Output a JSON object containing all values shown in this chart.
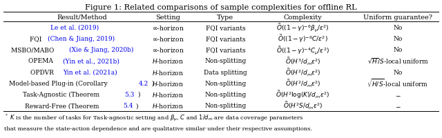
{
  "title": "Figure 1: Related comparisons of sample complexities for offline RL",
  "col_headers": [
    "Result/Method",
    "Setting",
    "Type",
    "Complexity",
    "Uniform guarantee?"
  ],
  "blue_color": "#0000EE",
  "text_color": "#000000",
  "bg_color": "#FFFFFF",
  "rows": [
    {
      "method_parts": [
        [
          "Le et al. (2019)",
          "blue"
        ]
      ],
      "setting": "$\\infty$-horizon",
      "type_": "FQI variants",
      "complexity": "$\\tilde{O}((1-\\gamma)^{-6}\\beta_{\\mu}/\\epsilon^2)$",
      "guarantee": "No"
    },
    {
      "method_parts": [
        [
          "FQI ",
          "black"
        ],
        [
          "(Chen & Jiang, 2019)",
          "blue"
        ]
      ],
      "setting": "$\\infty$-horizon",
      "type_": "FQI variants",
      "complexity": "$\\tilde{O}((1-\\gamma)^{-6}C/\\epsilon^2)$",
      "guarantee": "No"
    },
    {
      "method_parts": [
        [
          "MSBO/MABO ",
          "black"
        ],
        [
          "(Xie & Jiang, 2020b)",
          "blue"
        ]
      ],
      "setting": "$\\infty$-horizon",
      "type_": "FQI variants",
      "complexity": "$\\tilde{O}((1-\\gamma)^{-4}C_{\\mu}/\\epsilon^2)$",
      "guarantee": "No"
    },
    {
      "method_parts": [
        [
          "OPEMA ",
          "black"
        ],
        [
          "(Yin et al., 2021b)",
          "blue"
        ]
      ],
      "setting": "$H$-horizon",
      "type_": "Non-splitting",
      "complexity": "$\\tilde{O}(H^3/d_m\\epsilon^2)$",
      "guarantee": "$\\sqrt{H}/S$-local uniform"
    },
    {
      "method_parts": [
        [
          "OPDVR ",
          "black"
        ],
        [
          "Yin et al. (2021a)",
          "blue"
        ]
      ],
      "setting": "$H$-horizon",
      "type_": "Data splitting",
      "complexity": "$\\tilde{O}(H^2/d_m\\epsilon^2)$",
      "guarantee": "No"
    },
    {
      "method_parts": [
        [
          "Model-based Plug-in (Corollary ",
          "black"
        ],
        [
          "4.2",
          "blue"
        ],
        [
          ")",
          "black"
        ]
      ],
      "setting": "$H$-horizon",
      "type_": "Non-splitting",
      "complexity": "$\\tilde{O}(H^2/d_m\\epsilon^2)$",
      "guarantee": "$\\sqrt{H/S}$-local uniform"
    },
    {
      "method_parts": [
        [
          "Task-Agnostic (Theorem ",
          "black"
        ],
        [
          "5.3",
          "blue"
        ],
        [
          ")",
          "black"
        ]
      ],
      "setting": "$H$-horizon",
      "type_": "Non-splitting",
      "complexity": "$\\tilde{O}(H^2\\log(K)/d_m\\epsilon^2)$",
      "guarantee": "$-$"
    },
    {
      "method_parts": [
        [
          "Reward-Free (Theorem ",
          "black"
        ],
        [
          "5.4",
          "blue"
        ],
        [
          ")",
          "black"
        ]
      ],
      "setting": "$H$-horizon",
      "type_": "Non-splitting",
      "complexity": "$\\tilde{O}(H^2S/d_m\\epsilon^2)$",
      "guarantee": "$-$"
    }
  ],
  "footnote_line1": "$^*$ $K$ is the number of tasks for Task-agnostic setting and $\\beta_{\\mu}$, $C$ and $1/d_m$ are data coverage parameters",
  "footnote_line2": "that measure the state-action dependence and are qualitative similar under their respective assumptions."
}
